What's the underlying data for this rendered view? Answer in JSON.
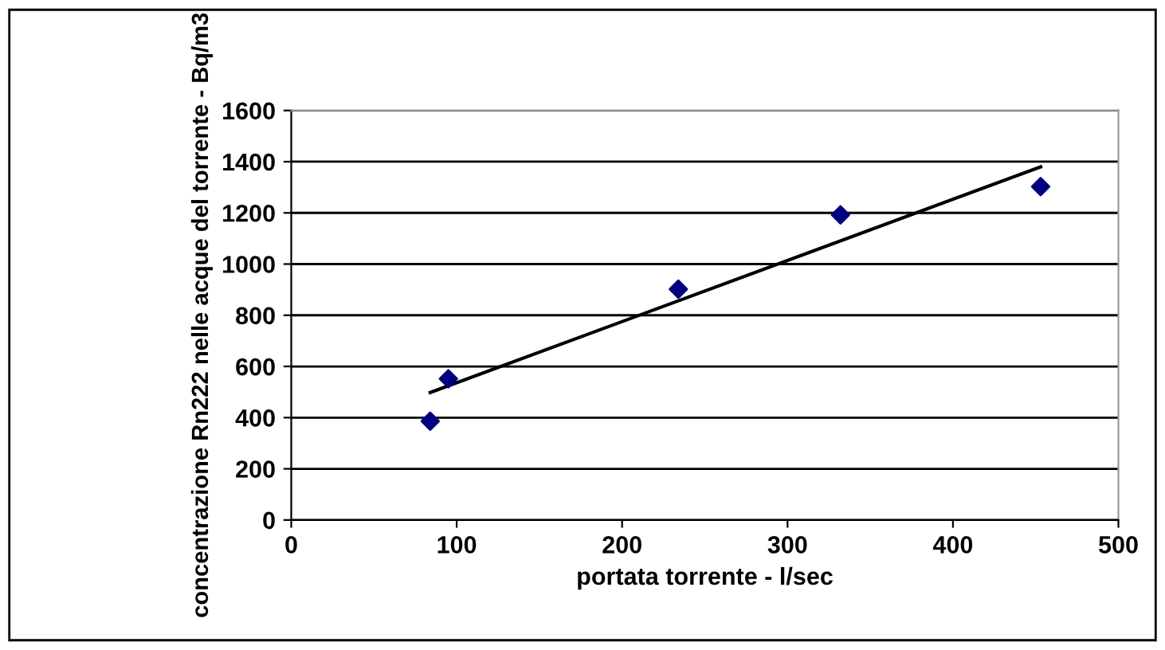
{
  "chart_data": {
    "type": "scatter",
    "xlabel": "portata torrente - l/sec",
    "ylabel": "concentrazione Rn222 nelle acque del torrente - Bq/m3",
    "x": [
      84,
      95,
      234,
      332,
      453
    ],
    "series": [
      {
        "color": "#000080",
        "values": [
          386,
          552,
          902,
          1192,
          1303
        ],
        "marker": "diamond"
      },
      {
        "type": "line",
        "color": "#000000",
        "x": [
          84,
          453
        ],
        "values": [
          498,
          1380
        ],
        "marker": "none"
      }
    ],
    "xlim": [
      0,
      500
    ],
    "ylim": [
      0,
      1600
    ],
    "xticks": [
      0,
      100,
      200,
      300,
      400,
      500
    ],
    "yticks": [
      0,
      200,
      400,
      600,
      800,
      1000,
      1200,
      1400,
      1600
    ],
    "grid": "y",
    "legend": false
  }
}
